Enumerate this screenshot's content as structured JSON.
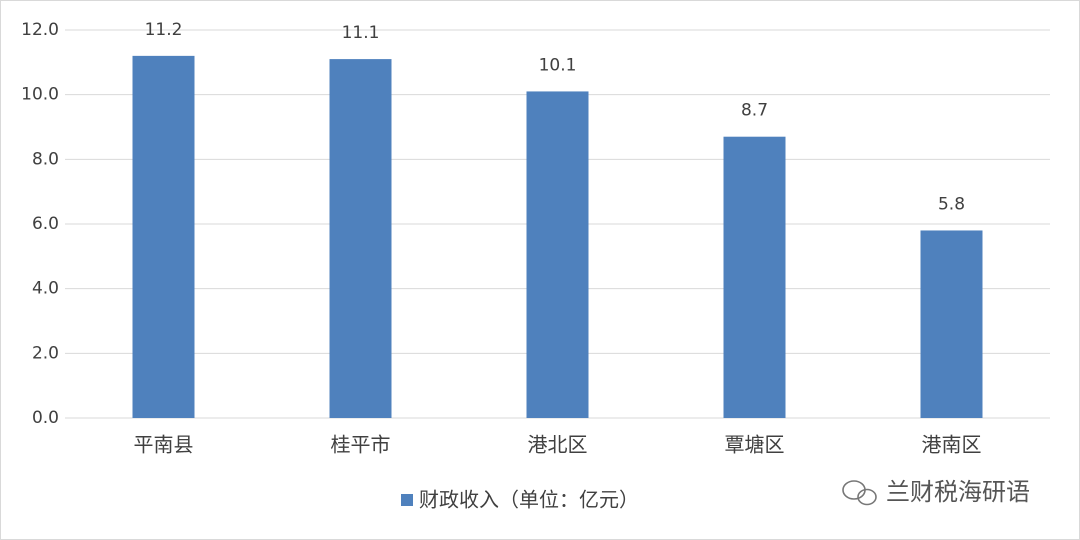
{
  "chart_data": {
    "type": "bar",
    "categories": [
      "平南县",
      "桂平市",
      "港北区",
      "覃塘区",
      "港南区"
    ],
    "series": [
      {
        "name": "财政收入（单位：亿元）",
        "color": "#4f81bd",
        "values": [
          11.2,
          11.1,
          10.1,
          8.7,
          5.8
        ]
      }
    ],
    "ylim": [
      0,
      12
    ],
    "yticks": [
      {
        "value": 0,
        "label": "0.0"
      },
      {
        "value": 2,
        "label": "2.0"
      },
      {
        "value": 4,
        "label": "4.0"
      },
      {
        "value": 6,
        "label": "6.0"
      },
      {
        "value": 8,
        "label": "8.0"
      },
      {
        "value": 10,
        "label": "10.0"
      },
      {
        "value": 12,
        "label": "12.0"
      }
    ],
    "grid": true,
    "legend": "bottom",
    "watermark": "兰财税海研语"
  }
}
